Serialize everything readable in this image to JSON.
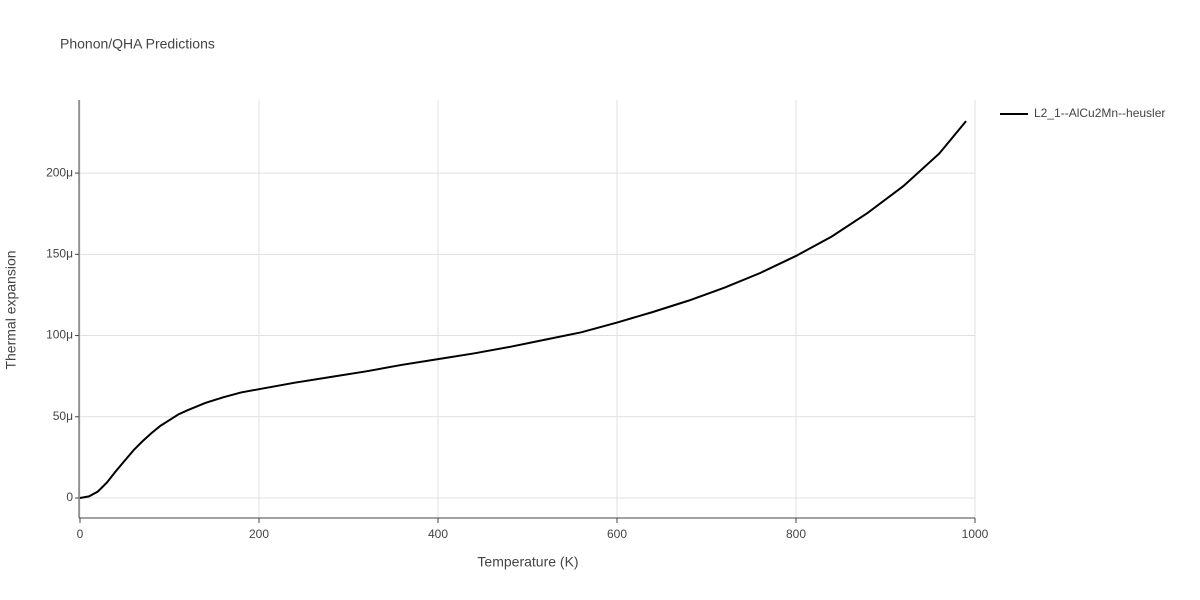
{
  "chart_data": {
    "type": "line",
    "title": "Phonon/QHA Predictions",
    "x_label": "Temperature (K)",
    "y_label": "Thermal expansion",
    "x": [
      0,
      10,
      20,
      30,
      40,
      50,
      60,
      70,
      80,
      90,
      100,
      110,
      120,
      140,
      160,
      180,
      200,
      240,
      280,
      320,
      360,
      400,
      440,
      480,
      520,
      560,
      600,
      640,
      680,
      720,
      760,
      800,
      840,
      880,
      920,
      960,
      990
    ],
    "series": [
      {
        "name": "L2_1--AlCu2Mn--heusler",
        "color": "#000000",
        "values": [
          0,
          1e-06,
          4e-06,
          9.5e-06,
          1.65e-05,
          2.3e-05,
          2.95e-05,
          3.5e-05,
          4e-05,
          4.45e-05,
          4.8e-05,
          5.15e-05,
          5.4e-05,
          5.85e-05,
          6.2e-05,
          6.5e-05,
          6.7e-05,
          7.1e-05,
          7.45e-05,
          7.8e-05,
          8.2e-05,
          8.55e-05,
          8.9e-05,
          9.3e-05,
          9.75e-05,
          0.000102,
          0.000108,
          0.0001145,
          0.0001215,
          0.0001295,
          0.0001385,
          0.000149,
          0.000161,
          0.0001755,
          0.000192,
          0.000212,
          0.000232
        ]
      }
    ],
    "xlim": [
      0,
      1000
    ],
    "xticks": [
      0,
      200,
      400,
      600,
      800,
      1000
    ],
    "ylim": [
      -1.23e-05,
      0.000245
    ],
    "yticks": [
      {
        "value": 0,
        "label": "0"
      },
      {
        "value": 5e-05,
        "label": "50μ"
      },
      {
        "value": 0.0001,
        "label": "100μ"
      },
      {
        "value": 0.00015,
        "label": "150μ"
      },
      {
        "value": 0.0002,
        "label": "200μ"
      }
    ],
    "grid": true,
    "legend": "right"
  }
}
